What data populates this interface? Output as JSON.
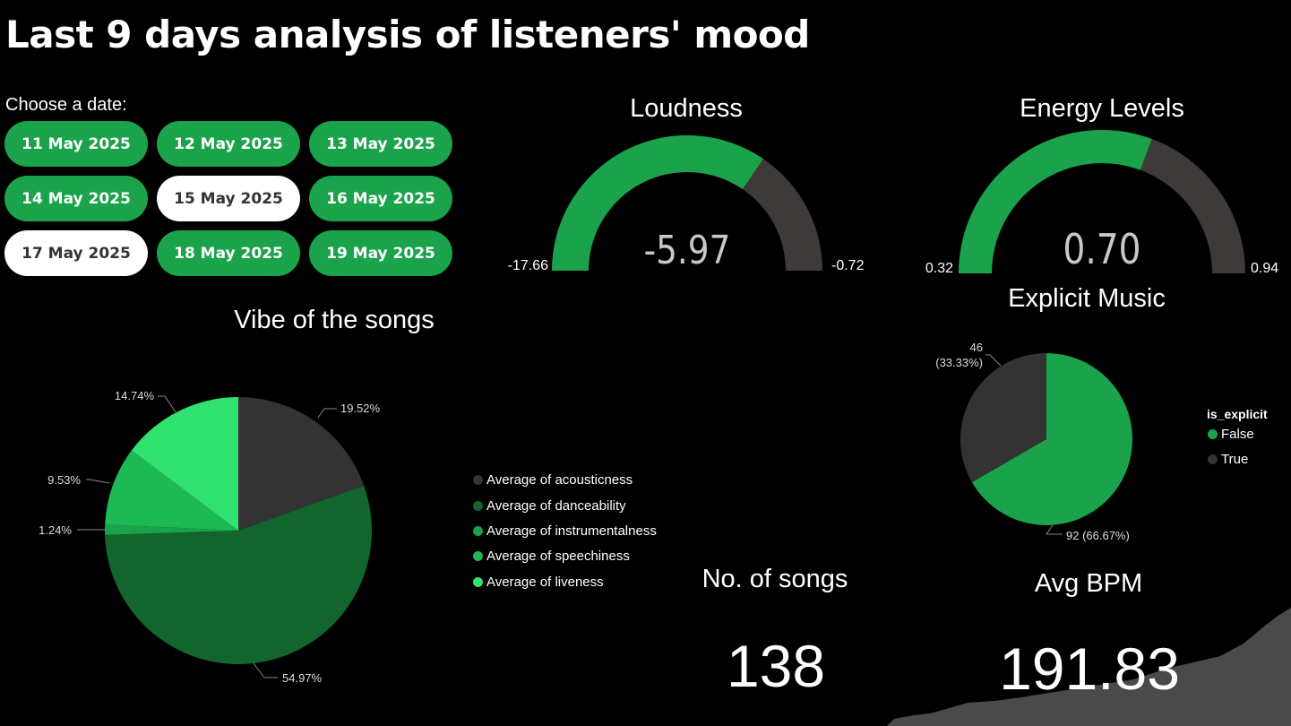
{
  "title": "Last 9 days analysis of listeners' mood",
  "date_picker": {
    "label": "Choose a date:",
    "dates": [
      "11 May 2025",
      "12 May 2025",
      "13 May 2025",
      "14 May 2025",
      "15 May 2025",
      "16 May 2025",
      "17 May 2025",
      "18 May 2025",
      "19 May 2025"
    ],
    "selected": [
      "15 May 2025",
      "17 May 2025"
    ]
  },
  "colors": {
    "green": "#1aa34a",
    "gauge_track": "#3d3a39",
    "dark_slice": "#333333",
    "selected_button": "#ffffff"
  },
  "loudness": {
    "title": "Loudness",
    "value_label": "-5.97",
    "min_label": "-17.66",
    "max_label": "-0.72"
  },
  "energy": {
    "title": "Energy Levels",
    "value_label": "0.70",
    "min_label": "0.32",
    "max_label": "0.94"
  },
  "songs_card": {
    "title": "No. of songs",
    "value": "138"
  },
  "bpm_card": {
    "title": "Avg BPM",
    "value": "191.83"
  },
  "chart_data": [
    {
      "type": "gauge",
      "title": "Loudness",
      "value": -5.97,
      "min": -17.66,
      "max": -0.72
    },
    {
      "type": "gauge",
      "title": "Energy Levels",
      "value": 0.7,
      "min": 0.32,
      "max": 0.94
    },
    {
      "type": "pie",
      "title": "Vibe of the songs",
      "slices": [
        {
          "name": "Average of acousticness",
          "value": 19.52,
          "label": "19.52%",
          "color": "#333333"
        },
        {
          "name": "Average of danceability",
          "value": 54.97,
          "label": "54.97%",
          "color": "#11652d"
        },
        {
          "name": "Average of instrumentalness",
          "value": 1.24,
          "label": "1.24%",
          "color": "#1aa34a"
        },
        {
          "name": "Average of speechiness",
          "value": 9.53,
          "label": "9.53%",
          "color": "#1db954"
        },
        {
          "name": "Average of liveness",
          "value": 14.74,
          "label": "14.74%",
          "color": "#32e270"
        }
      ]
    },
    {
      "type": "pie",
      "title": "Explicit Music",
      "legend_title": "is_explicit",
      "slices": [
        {
          "name": "False",
          "value": 92,
          "label": "92 (66.67%)",
          "color": "#1aa34a"
        },
        {
          "name": "True",
          "value": 46,
          "label_line1": "46",
          "label_line2": "(33.33%)",
          "color": "#333333"
        }
      ]
    }
  ]
}
